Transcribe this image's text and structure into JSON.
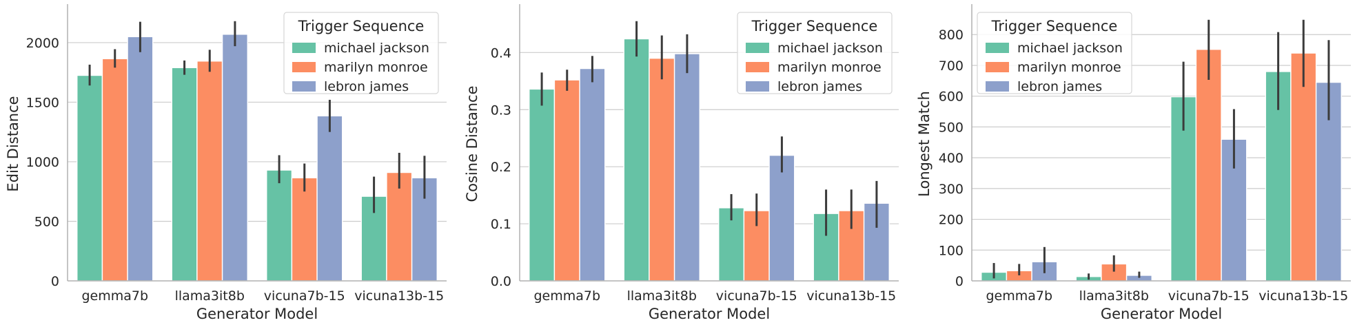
{
  "chart_data": [
    {
      "type": "bar",
      "categories": [
        "gemma7b",
        "llama3it8b",
        "vicuna7b-15",
        "vicuna13b-15"
      ],
      "xlabel": "Generator Model",
      "ylabel": "Edit Distance",
      "ylim": [
        0,
        2300
      ],
      "yticks": [
        0,
        500,
        1000,
        1500,
        2000
      ],
      "legend_title": "Trigger Sequence",
      "legend_position": "top-right",
      "grid": "horizontal",
      "series": [
        {
          "name": "michael jackson",
          "values": [
            1725,
            1790,
            930,
            710
          ],
          "err_low": [
            1640,
            1730,
            820,
            570
          ],
          "err_high": [
            1815,
            1850,
            1055,
            875
          ]
        },
        {
          "name": "marilyn monroe",
          "values": [
            1865,
            1845,
            865,
            910
          ],
          "err_low": [
            1790,
            1755,
            750,
            775
          ],
          "err_high": [
            1945,
            1940,
            985,
            1075
          ]
        },
        {
          "name": "lebron james",
          "values": [
            2050,
            2070,
            1385,
            865
          ],
          "err_low": [
            1920,
            1970,
            1250,
            690
          ],
          "err_high": [
            2175,
            2180,
            1520,
            1050
          ]
        }
      ]
    },
    {
      "type": "bar",
      "categories": [
        "gemma7b",
        "llama3it8b",
        "vicuna7b-15",
        "vicuna13b-15"
      ],
      "xlabel": "Generator Model",
      "ylabel": "Cosine Distance",
      "ylim": [
        0,
        0.48
      ],
      "yticks": [
        "0.0",
        "0.1",
        "0.2",
        "0.3",
        "0.4"
      ],
      "legend_title": "Trigger Sequence",
      "legend_position": "top-right",
      "grid": "horizontal",
      "series": [
        {
          "name": "michael jackson",
          "values": [
            0.336,
            0.424,
            0.128,
            0.118
          ],
          "err_low": [
            0.307,
            0.393,
            0.106,
            0.079
          ],
          "err_high": [
            0.365,
            0.455,
            0.152,
            0.16
          ]
        },
        {
          "name": "marilyn monroe",
          "values": [
            0.352,
            0.39,
            0.123,
            0.123
          ],
          "err_low": [
            0.333,
            0.353,
            0.096,
            0.091
          ],
          "err_high": [
            0.37,
            0.43,
            0.153,
            0.16
          ]
        },
        {
          "name": "lebron james",
          "values": [
            0.372,
            0.398,
            0.22,
            0.136
          ],
          "err_low": [
            0.348,
            0.364,
            0.19,
            0.093
          ],
          "err_high": [
            0.394,
            0.432,
            0.253,
            0.175
          ]
        }
      ]
    },
    {
      "type": "bar",
      "categories": [
        "gemma7b",
        "llama3it8b",
        "vicuna7b-15",
        "vicuna13b-15"
      ],
      "xlabel": "Generator Model",
      "ylabel": "Longest Match",
      "ylim": [
        0,
        890
      ],
      "yticks": [
        0,
        100,
        200,
        300,
        400,
        500,
        600,
        700,
        800
      ],
      "legend_title": "Trigger Sequence",
      "legend_position": "top-left",
      "grid": "horizontal",
      "series": [
        {
          "name": "michael jackson",
          "values": [
            28,
            14,
            598,
            680
          ],
          "err_low": [
            8,
            4,
            488,
            555
          ],
          "err_high": [
            58,
            24,
            712,
            808
          ]
        },
        {
          "name": "marilyn monroe",
          "values": [
            33,
            55,
            752,
            740
          ],
          "err_low": [
            18,
            30,
            653,
            630
          ],
          "err_high": [
            55,
            83,
            848,
            848
          ]
        },
        {
          "name": "lebron james",
          "values": [
            62,
            18,
            460,
            645
          ],
          "err_low": [
            25,
            10,
            365,
            522
          ],
          "err_high": [
            110,
            30,
            558,
            782
          ]
        }
      ]
    }
  ],
  "colors": {
    "michael jackson": "#66c2a5",
    "marilyn monroe": "#fc8d62",
    "lebron james": "#8da0cb",
    "errorbar": "#3b3b3b",
    "grid": "#cccccc",
    "axis": "#b0b0b0",
    "text": "#262626"
  }
}
